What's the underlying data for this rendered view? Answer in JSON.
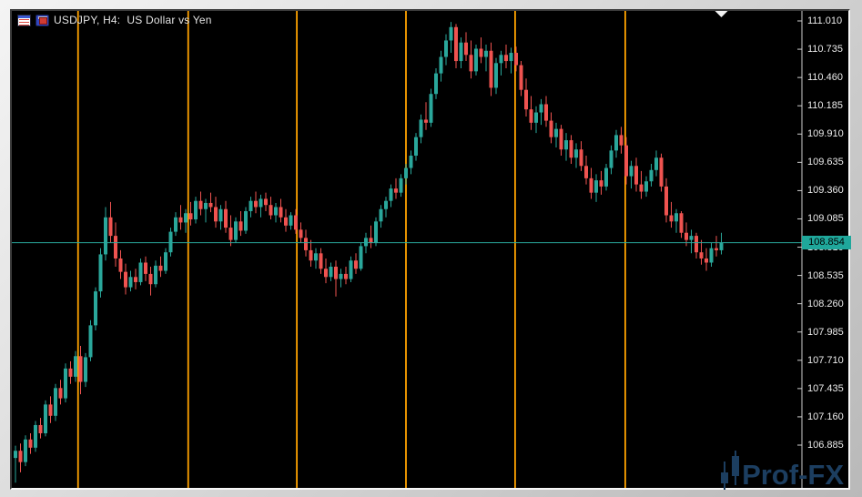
{
  "window": {
    "title": "USDJPY, H4:  US Dollar vs Yen",
    "icons": [
      "quotes-table-icon",
      "chart-window-icon"
    ]
  },
  "price_axis": {
    "ticks": [
      "111.010",
      "110.735",
      "110.460",
      "110.185",
      "109.910",
      "109.635",
      "109.360",
      "109.085",
      "108.810",
      "108.535",
      "108.260",
      "107.985",
      "107.710",
      "107.435",
      "107.160",
      "106.885"
    ],
    "current_price": "108.854"
  },
  "watermark": {
    "text": "Prof-FX"
  },
  "colors": {
    "background": "#000000",
    "frame": "#d9d9d9",
    "bull_candle": "#2aa79b",
    "bear_candle": "#ef5350",
    "vertical_line": "#ffa200",
    "price_line": "#2aa99d",
    "badge_bg": "#1fa79b",
    "badge_text": "#000000",
    "axis_text": "#ececec",
    "axis_line": "#cfcfcf",
    "watermark_text": "#1c3e60",
    "shift_marker": "#f2f2f2"
  },
  "chart_data": {
    "type": "candlestick",
    "symbol": "USDJPY",
    "timeframe": "H4",
    "description": "US Dollar vs Yen",
    "title": "USDJPY, H4:  US Dollar vs Yen",
    "grid": false,
    "time_axis_labels": false,
    "y_axis": {
      "max": 111.01,
      "min": 106.885,
      "tick_step": 0.275
    },
    "current_price": 108.854,
    "vertical_lines_bar_index": [
      12.5,
      34.5,
      56.2,
      78,
      99.8,
      121.8
    ],
    "shift_marker_bar_index": 141,
    "candles_ohlc_format": [
      "open",
      "high",
      "low",
      "close"
    ],
    "candles": [
      [
        106.76,
        106.88,
        106.52,
        106.83
      ],
      [
        106.83,
        106.9,
        106.62,
        106.72
      ],
      [
        106.72,
        106.98,
        106.68,
        106.94
      ],
      [
        106.94,
        107.0,
        106.8,
        106.86
      ],
      [
        106.86,
        107.12,
        106.82,
        107.08
      ],
      [
        107.08,
        107.15,
        106.95,
        107.0
      ],
      [
        107.0,
        107.32,
        106.97,
        107.28
      ],
      [
        107.28,
        107.36,
        107.1,
        107.17
      ],
      [
        107.17,
        107.48,
        107.12,
        107.44
      ],
      [
        107.44,
        107.52,
        107.28,
        107.34
      ],
      [
        107.34,
        107.68,
        107.3,
        107.63
      ],
      [
        107.63,
        107.7,
        107.48,
        107.55
      ],
      [
        107.55,
        107.8,
        107.5,
        107.75
      ],
      [
        107.75,
        107.85,
        107.38,
        107.5
      ],
      [
        107.5,
        107.78,
        107.45,
        107.74
      ],
      [
        107.74,
        108.1,
        107.7,
        108.05
      ],
      [
        108.05,
        108.42,
        108.0,
        108.38
      ],
      [
        108.38,
        108.8,
        108.32,
        108.74
      ],
      [
        108.74,
        109.2,
        108.68,
        109.1
      ],
      [
        109.1,
        109.25,
        108.85,
        108.92
      ],
      [
        108.92,
        109.05,
        108.62,
        108.7
      ],
      [
        108.7,
        108.78,
        108.5,
        108.57
      ],
      [
        108.57,
        108.65,
        108.35,
        108.42
      ],
      [
        108.42,
        108.58,
        108.38,
        108.52
      ],
      [
        108.52,
        108.6,
        108.4,
        108.47
      ],
      [
        108.47,
        108.7,
        108.44,
        108.66
      ],
      [
        108.66,
        108.72,
        108.48,
        108.55
      ],
      [
        108.55,
        108.62,
        108.34,
        108.45
      ],
      [
        108.45,
        108.68,
        108.42,
        108.63
      ],
      [
        108.63,
        108.72,
        108.52,
        108.58
      ],
      [
        108.58,
        108.8,
        108.55,
        108.76
      ],
      [
        108.76,
        109.0,
        108.72,
        108.96
      ],
      [
        108.96,
        109.15,
        108.92,
        109.1
      ],
      [
        109.1,
        109.22,
        108.98,
        109.05
      ],
      [
        109.05,
        109.18,
        108.95,
        109.14
      ],
      [
        109.14,
        109.25,
        109.02,
        109.08
      ],
      [
        109.08,
        109.3,
        109.04,
        109.26
      ],
      [
        109.26,
        109.35,
        109.12,
        109.18
      ],
      [
        109.18,
        109.28,
        109.05,
        109.24
      ],
      [
        109.24,
        109.34,
        109.15,
        109.2
      ],
      [
        109.2,
        109.3,
        109.0,
        109.06
      ],
      [
        109.06,
        109.22,
        108.98,
        109.18
      ],
      [
        109.18,
        109.26,
        108.95,
        109.0
      ],
      [
        109.0,
        109.12,
        108.82,
        108.88
      ],
      [
        108.88,
        109.1,
        108.85,
        109.06
      ],
      [
        109.06,
        109.16,
        108.92,
        108.97
      ],
      [
        108.97,
        109.2,
        108.94,
        109.16
      ],
      [
        109.16,
        109.3,
        109.1,
        109.26
      ],
      [
        109.26,
        109.35,
        109.14,
        109.2
      ],
      [
        109.2,
        109.32,
        109.1,
        109.28
      ],
      [
        109.28,
        109.34,
        109.16,
        109.22
      ],
      [
        109.22,
        109.3,
        109.08,
        109.12
      ],
      [
        109.12,
        109.24,
        109.05,
        109.2
      ],
      [
        109.2,
        109.28,
        109.05,
        109.1
      ],
      [
        109.1,
        109.18,
        108.96,
        109.02
      ],
      [
        109.02,
        109.15,
        108.98,
        109.12
      ],
      [
        109.12,
        109.18,
        108.94,
        108.98
      ],
      [
        108.98,
        109.05,
        108.85,
        108.9
      ],
      [
        108.9,
        108.98,
        108.72,
        108.78
      ],
      [
        108.78,
        108.88,
        108.62,
        108.68
      ],
      [
        108.68,
        108.8,
        108.6,
        108.75
      ],
      [
        108.75,
        108.8,
        108.55,
        108.6
      ],
      [
        108.6,
        108.7,
        108.46,
        108.52
      ],
      [
        108.52,
        108.66,
        108.48,
        108.62
      ],
      [
        108.62,
        108.68,
        108.33,
        108.5
      ],
      [
        108.5,
        108.6,
        108.42,
        108.55
      ],
      [
        108.55,
        108.62,
        108.45,
        108.5
      ],
      [
        108.5,
        108.72,
        108.47,
        108.68
      ],
      [
        108.68,
        108.75,
        108.55,
        108.6
      ],
      [
        108.6,
        108.85,
        108.58,
        108.82
      ],
      [
        108.82,
        108.95,
        108.75,
        108.9
      ],
      [
        108.9,
        109.02,
        108.8,
        108.85
      ],
      [
        108.85,
        109.1,
        108.82,
        109.06
      ],
      [
        109.06,
        109.22,
        109.0,
        109.18
      ],
      [
        109.18,
        109.3,
        109.1,
        109.26
      ],
      [
        109.26,
        109.42,
        109.2,
        109.38
      ],
      [
        109.38,
        109.48,
        109.28,
        109.34
      ],
      [
        109.34,
        109.52,
        109.3,
        109.48
      ],
      [
        109.48,
        109.62,
        109.42,
        109.58
      ],
      [
        109.58,
        109.75,
        109.52,
        109.7
      ],
      [
        109.7,
        109.92,
        109.65,
        109.88
      ],
      [
        109.88,
        110.1,
        109.82,
        110.05
      ],
      [
        110.05,
        110.22,
        109.95,
        110.02
      ],
      [
        110.02,
        110.35,
        109.98,
        110.3
      ],
      [
        110.3,
        110.55,
        110.25,
        110.5
      ],
      [
        110.5,
        110.72,
        110.42,
        110.66
      ],
      [
        110.66,
        110.88,
        110.58,
        110.82
      ],
      [
        110.82,
        111.0,
        110.7,
        110.95
      ],
      [
        110.95,
        110.98,
        110.55,
        110.62
      ],
      [
        110.62,
        110.85,
        110.55,
        110.8
      ],
      [
        110.8,
        110.9,
        110.62,
        110.68
      ],
      [
        110.68,
        110.82,
        110.45,
        110.52
      ],
      [
        110.52,
        110.78,
        110.48,
        110.74
      ],
      [
        110.74,
        110.85,
        110.6,
        110.66
      ],
      [
        110.66,
        110.78,
        110.52,
        110.72
      ],
      [
        110.72,
        110.8,
        110.28,
        110.36
      ],
      [
        110.36,
        110.65,
        110.3,
        110.6
      ],
      [
        110.6,
        110.72,
        110.48,
        110.68
      ],
      [
        110.68,
        110.78,
        110.55,
        110.62
      ],
      [
        110.62,
        110.75,
        110.5,
        110.7
      ],
      [
        110.7,
        110.76,
        110.52,
        110.58
      ],
      [
        110.58,
        110.62,
        110.28,
        110.34
      ],
      [
        110.34,
        110.45,
        110.08,
        110.15
      ],
      [
        110.15,
        110.28,
        109.95,
        110.02
      ],
      [
        110.02,
        110.18,
        109.92,
        110.12
      ],
      [
        110.12,
        110.25,
        110.0,
        110.2
      ],
      [
        110.2,
        110.28,
        109.98,
        110.04
      ],
      [
        110.04,
        110.12,
        109.82,
        109.88
      ],
      [
        109.88,
        110.02,
        109.78,
        109.96
      ],
      [
        109.96,
        110.0,
        109.7,
        109.76
      ],
      [
        109.76,
        109.92,
        109.65,
        109.85
      ],
      [
        109.85,
        109.9,
        109.62,
        109.68
      ],
      [
        109.68,
        109.82,
        109.58,
        109.76
      ],
      [
        109.76,
        109.84,
        109.55,
        109.6
      ],
      [
        109.6,
        109.7,
        109.42,
        109.48
      ],
      [
        109.48,
        109.58,
        109.28,
        109.34
      ],
      [
        109.34,
        109.52,
        109.25,
        109.46
      ],
      [
        109.46,
        109.55,
        109.32,
        109.4
      ],
      [
        109.4,
        109.62,
        109.36,
        109.58
      ],
      [
        109.58,
        109.8,
        109.52,
        109.75
      ],
      [
        109.75,
        109.95,
        109.68,
        109.9
      ],
      [
        109.9,
        109.98,
        109.72,
        109.8
      ],
      [
        109.8,
        109.88,
        109.42,
        109.5
      ],
      [
        109.5,
        109.65,
        109.38,
        109.6
      ],
      [
        109.6,
        109.68,
        109.35,
        109.42
      ],
      [
        109.42,
        109.55,
        109.28,
        109.35
      ],
      [
        109.35,
        109.5,
        109.3,
        109.45
      ],
      [
        109.45,
        109.62,
        109.4,
        109.56
      ],
      [
        109.56,
        109.75,
        109.5,
        109.68
      ],
      [
        109.68,
        109.72,
        109.35,
        109.4
      ],
      [
        109.4,
        109.48,
        109.05,
        109.12
      ],
      [
        109.12,
        109.25,
        109.0,
        109.06
      ],
      [
        109.06,
        109.18,
        108.95,
        109.14
      ],
      [
        109.14,
        109.16,
        108.9,
        108.95
      ],
      [
        108.95,
        109.05,
        108.82,
        108.88
      ],
      [
        108.88,
        108.98,
        108.75,
        108.92
      ],
      [
        108.92,
        108.95,
        108.7,
        108.76
      ],
      [
        108.76,
        108.88,
        108.64,
        108.7
      ],
      [
        108.7,
        108.8,
        108.58,
        108.66
      ],
      [
        108.66,
        108.85,
        108.62,
        108.8
      ],
      [
        108.8,
        108.92,
        108.72,
        108.78
      ],
      [
        108.78,
        108.95,
        108.74,
        108.854
      ]
    ]
  }
}
